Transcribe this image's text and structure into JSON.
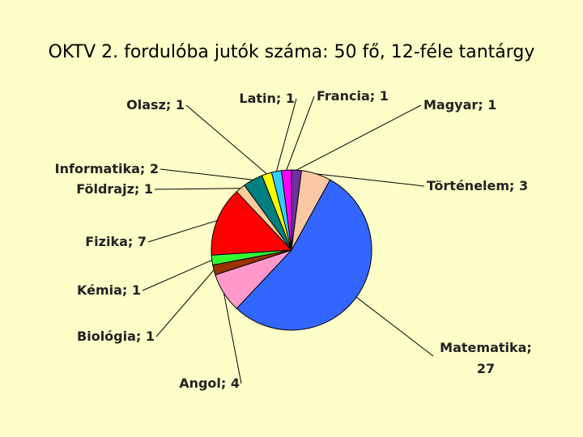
{
  "chart_data": {
    "type": "pie",
    "title": "OKTV 2. fordulóba jutók száma: 50 fő, 12-féle tantárgy",
    "values": [
      1,
      3,
      27,
      4,
      1,
      1,
      7,
      1,
      2,
      1,
      1,
      1
    ],
    "value_labels": [
      "Magyar; 1",
      "Történelem; 3",
      "Matematika; 27",
      "Angol; 4",
      "Biológia; 1",
      "Kémia; 1",
      "Fizika; 7",
      "Földrajz; 1",
      "Informatika; 2",
      "Olasz; 1",
      "Latin; 1",
      "Francia; 1"
    ],
    "colors": [
      "#7030a0",
      "#fbc8a4",
      "#3366ff",
      "#ff99cc",
      "#993300",
      "#33ff33",
      "#ff0000",
      "#ffcc99",
      "#008080",
      "#ffff00",
      "#33ccff",
      "#ff00ff"
    ]
  }
}
